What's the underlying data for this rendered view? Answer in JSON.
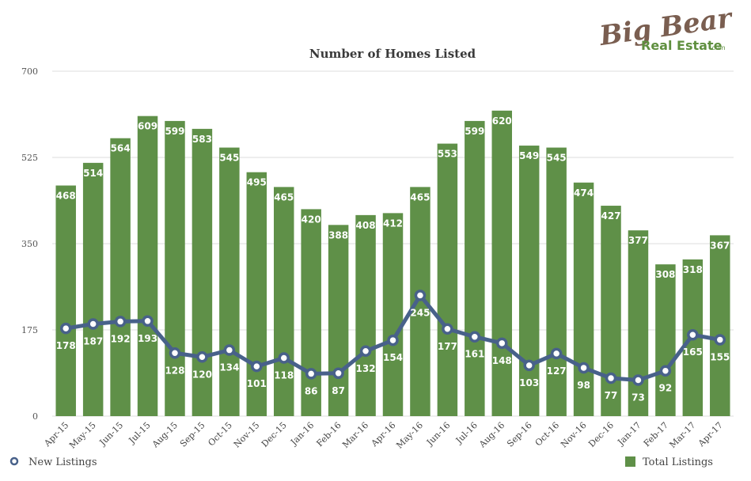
{
  "logo": {
    "text_main": "Big Bear",
    "text_sub": "Real Estate",
    "text_suffix": ".com"
  },
  "chart_data": {
    "type": "bar",
    "title": "Number of Homes Listed",
    "xlabel": "",
    "ylabel": "",
    "ylim": [
      0,
      700
    ],
    "yticks": [
      0,
      175,
      350,
      525,
      700
    ],
    "grid": true,
    "legend_position": "bottom",
    "categories": [
      "Apr-15",
      "May-15",
      "Jun-15",
      "Jul-15",
      "Aug-15",
      "Sep-15",
      "Oct-15",
      "Nov-15",
      "Dec-15",
      "Jan-16",
      "Feb-16",
      "Mar-16",
      "Apr-16",
      "May-16",
      "Jun-16",
      "Jul-16",
      "Aug-16",
      "Sep-16",
      "Oct-16",
      "Nov-16",
      "Dec-16",
      "Jan-17",
      "Feb-17",
      "Mar-17",
      "Apr-17"
    ],
    "series": [
      {
        "name": "Total Listings",
        "type": "bar",
        "color": "#5f9048",
        "values": [
          468,
          514,
          564,
          609,
          599,
          583,
          545,
          495,
          465,
          420,
          388,
          408,
          412,
          465,
          553,
          599,
          620,
          549,
          545,
          474,
          427,
          377,
          308,
          318,
          367
        ]
      },
      {
        "name": "New Listings",
        "type": "line",
        "color": "#48618a",
        "values": [
          178,
          187,
          192,
          193,
          128,
          120,
          134,
          101,
          118,
          86,
          87,
          132,
          154,
          245,
          177,
          161,
          148,
          103,
          127,
          98,
          77,
          73,
          92,
          165,
          155
        ]
      }
    ]
  }
}
